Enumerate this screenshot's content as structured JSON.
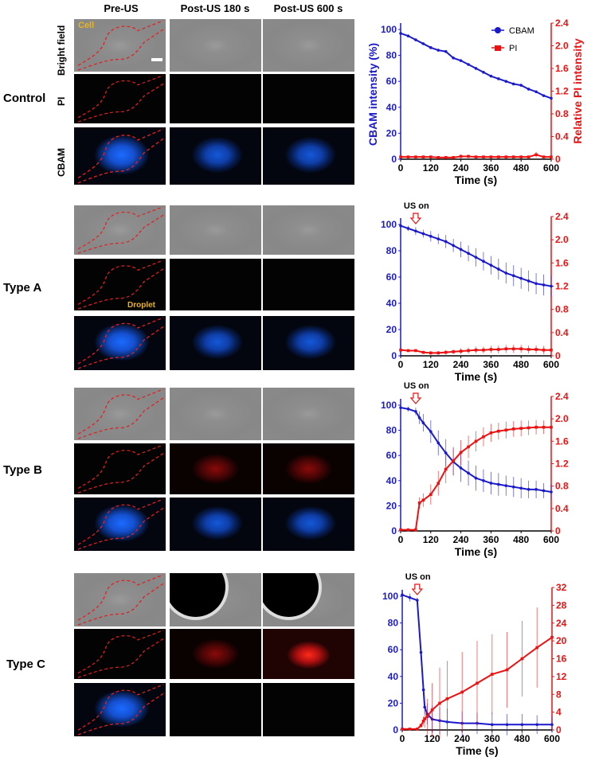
{
  "columns": [
    "Pre-US",
    "Post-US 180 s",
    "Post-US 600 s"
  ],
  "channels": [
    "Bright field",
    "PI",
    "CBAM"
  ],
  "rows": [
    "Control",
    "Type A",
    "Type B",
    "Type C"
  ],
  "annotations": {
    "cell": "Cell",
    "droplet": "Droplet",
    "us_on": "US on"
  },
  "colors": {
    "cbam": "#1a1acc",
    "pi": "#ee1111",
    "outline": "#e02020",
    "annotation": "#e6b422"
  },
  "chart_data": [
    {
      "type": "line",
      "row": "Control",
      "xlabel": "Time (s)",
      "ylabel": "CBAM intensity (%)",
      "y2label": "Relative PI intensity",
      "legend": [
        "CBAM",
        "PI"
      ],
      "legend_position": "top-right",
      "xlim": [
        0,
        600
      ],
      "ylim": [
        0,
        100
      ],
      "y2lim": [
        0,
        2.4
      ],
      "xticks": [
        0,
        120,
        240,
        360,
        480,
        600
      ],
      "yticks": [
        0,
        20,
        40,
        60,
        80,
        100
      ],
      "y2ticks": [
        0,
        0.4,
        0.8,
        1.2,
        1.6,
        2.0,
        2.4
      ],
      "x": [
        0,
        30,
        60,
        90,
        120,
        150,
        180,
        210,
        240,
        270,
        300,
        330,
        360,
        390,
        420,
        450,
        480,
        510,
        540,
        570,
        600
      ],
      "series": [
        {
          "name": "CBAM",
          "axis": "left",
          "values": [
            97,
            95,
            92,
            89,
            86,
            84,
            83,
            78,
            76,
            73,
            70,
            67,
            64,
            62,
            60,
            58,
            57,
            54,
            52,
            49,
            47
          ],
          "err": [
            0,
            0,
            0,
            0,
            0,
            0,
            0,
            0,
            0,
            0,
            0,
            0,
            0,
            0,
            0,
            0,
            1,
            0,
            0,
            0,
            0
          ]
        },
        {
          "name": "PI",
          "axis": "right",
          "values": [
            0.04,
            0.04,
            0.04,
            0.04,
            0.04,
            0.03,
            0.03,
            0.03,
            0.05,
            0.05,
            0.04,
            0.04,
            0.04,
            0.04,
            0.04,
            0.04,
            0.04,
            0.04,
            0.08,
            0.04,
            0.04
          ],
          "err": [
            0,
            0,
            0,
            0,
            0,
            0,
            0,
            0,
            0.03,
            0.03,
            0,
            0,
            0,
            0,
            0,
            0,
            0,
            0,
            0.05,
            0,
            0
          ]
        }
      ]
    },
    {
      "type": "line",
      "row": "Type A",
      "xlabel": "Time (s)",
      "annotation": "US on",
      "annotation_x": 60,
      "xlim": [
        0,
        600
      ],
      "ylim": [
        0,
        100
      ],
      "y2lim": [
        0,
        2.4
      ],
      "xticks": [
        0,
        120,
        240,
        360,
        480,
        600
      ],
      "yticks": [
        0,
        20,
        40,
        60,
        80,
        100
      ],
      "y2ticks": [
        0,
        0.4,
        0.8,
        1.2,
        1.6,
        2.0,
        2.4
      ],
      "x": [
        0,
        30,
        60,
        90,
        120,
        150,
        180,
        210,
        240,
        270,
        300,
        330,
        360,
        390,
        420,
        450,
        480,
        510,
        540,
        570,
        600
      ],
      "series": [
        {
          "name": "CBAM",
          "axis": "left",
          "values": [
            99,
            97,
            95,
            93,
            91,
            89,
            87,
            84,
            81,
            78,
            75,
            72,
            69,
            66,
            63,
            61,
            59,
            57,
            55,
            54,
            53
          ],
          "err": [
            1,
            2,
            3,
            3,
            4,
            4,
            5,
            5,
            6,
            6,
            7,
            7,
            7,
            8,
            8,
            8,
            8,
            8,
            8,
            8,
            8
          ]
        },
        {
          "name": "PI",
          "axis": "right",
          "values": [
            0.1,
            0.09,
            0.09,
            0.06,
            0.05,
            0.05,
            0.06,
            0.07,
            0.08,
            0.09,
            0.1,
            0.1,
            0.11,
            0.11,
            0.12,
            0.12,
            0.12,
            0.11,
            0.11,
            0.1,
            0.1
          ],
          "err": [
            0.02,
            0.02,
            0.02,
            0.02,
            0.03,
            0.03,
            0.04,
            0.04,
            0.05,
            0.05,
            0.06,
            0.06,
            0.06,
            0.07,
            0.07,
            0.07,
            0.07,
            0.07,
            0.07,
            0.07,
            0.07
          ]
        }
      ]
    },
    {
      "type": "line",
      "row": "Type B",
      "xlabel": "Time (s)",
      "annotation": "US on",
      "annotation_x": 60,
      "xlim": [
        0,
        600
      ],
      "ylim": [
        0,
        100
      ],
      "y2lim": [
        0,
        2.4
      ],
      "xticks": [
        0,
        120,
        240,
        360,
        480,
        600
      ],
      "yticks": [
        0,
        20,
        40,
        60,
        80,
        100
      ],
      "y2ticks": [
        0,
        0.4,
        0.8,
        1.2,
        1.6,
        2.0,
        2.4
      ],
      "x": [
        0,
        30,
        60,
        75,
        90,
        120,
        150,
        180,
        210,
        240,
        270,
        300,
        330,
        360,
        390,
        420,
        450,
        480,
        510,
        540,
        570,
        600
      ],
      "series": [
        {
          "name": "CBAM",
          "axis": "left",
          "values": [
            98,
            97,
            95,
            90,
            86,
            79,
            70,
            62,
            55,
            50,
            46,
            42,
            40,
            38,
            37,
            36,
            35,
            34,
            33,
            33,
            32,
            31
          ],
          "err": [
            2,
            2,
            3,
            5,
            7,
            9,
            10,
            11,
            11,
            11,
            10,
            10,
            9,
            9,
            9,
            8,
            8,
            8,
            7,
            7,
            6,
            6
          ],
          "err_side": "both"
        },
        {
          "name": "PI",
          "axis": "right",
          "values": [
            0.02,
            0.02,
            0.02,
            0.5,
            0.55,
            0.65,
            0.85,
            1.1,
            1.25,
            1.4,
            1.5,
            1.6,
            1.68,
            1.75,
            1.78,
            1.8,
            1.82,
            1.83,
            1.84,
            1.85,
            1.85,
            1.85
          ],
          "err": [
            0,
            0,
            0,
            0.1,
            0.12,
            0.18,
            0.22,
            0.25,
            0.25,
            0.22,
            0.2,
            0.18,
            0.17,
            0.16,
            0.15,
            0.15,
            0.14,
            0.14,
            0.13,
            0.13,
            0.12,
            0.12
          ]
        }
      ]
    },
    {
      "type": "line",
      "row": "Type C",
      "xlabel": "Time (s)",
      "annotation": "US on",
      "annotation_x": 60,
      "xlim": [
        0,
        600
      ],
      "ylim": [
        0,
        100
      ],
      "y2lim": [
        0,
        32
      ],
      "xticks": [
        0,
        120,
        240,
        360,
        480,
        600
      ],
      "yticks": [
        0,
        20,
        40,
        60,
        80,
        100
      ],
      "y2ticks": [
        0,
        4,
        8,
        12,
        16,
        20,
        24,
        28,
        32
      ],
      "x": [
        0,
        30,
        60,
        75,
        85,
        90,
        100,
        120,
        150,
        180,
        240,
        300,
        360,
        420,
        480,
        540,
        600
      ],
      "series": [
        {
          "name": "CBAM",
          "axis": "left",
          "values": [
            101,
            99,
            97,
            58,
            30,
            17,
            12,
            8,
            7,
            6,
            5,
            5,
            4,
            4,
            4,
            4,
            4
          ],
          "err": [
            4,
            3,
            2,
            3,
            4,
            5,
            8,
            10,
            10,
            10,
            9,
            8,
            9,
            8,
            8,
            7,
            6
          ]
        },
        {
          "name": "PI",
          "axis": "right",
          "values": [
            0.2,
            0.2,
            0.2,
            1,
            2,
            2.5,
            3,
            4.5,
            6,
            7,
            8.5,
            10.5,
            12.5,
            13.5,
            16,
            18.5,
            20.8
          ],
          "err": [
            0,
            0,
            0,
            0.5,
            1,
            2,
            4,
            6,
            8,
            8.5,
            9,
            9.5,
            9,
            8.5,
            8.5,
            9,
            9
          ]
        }
      ]
    }
  ]
}
